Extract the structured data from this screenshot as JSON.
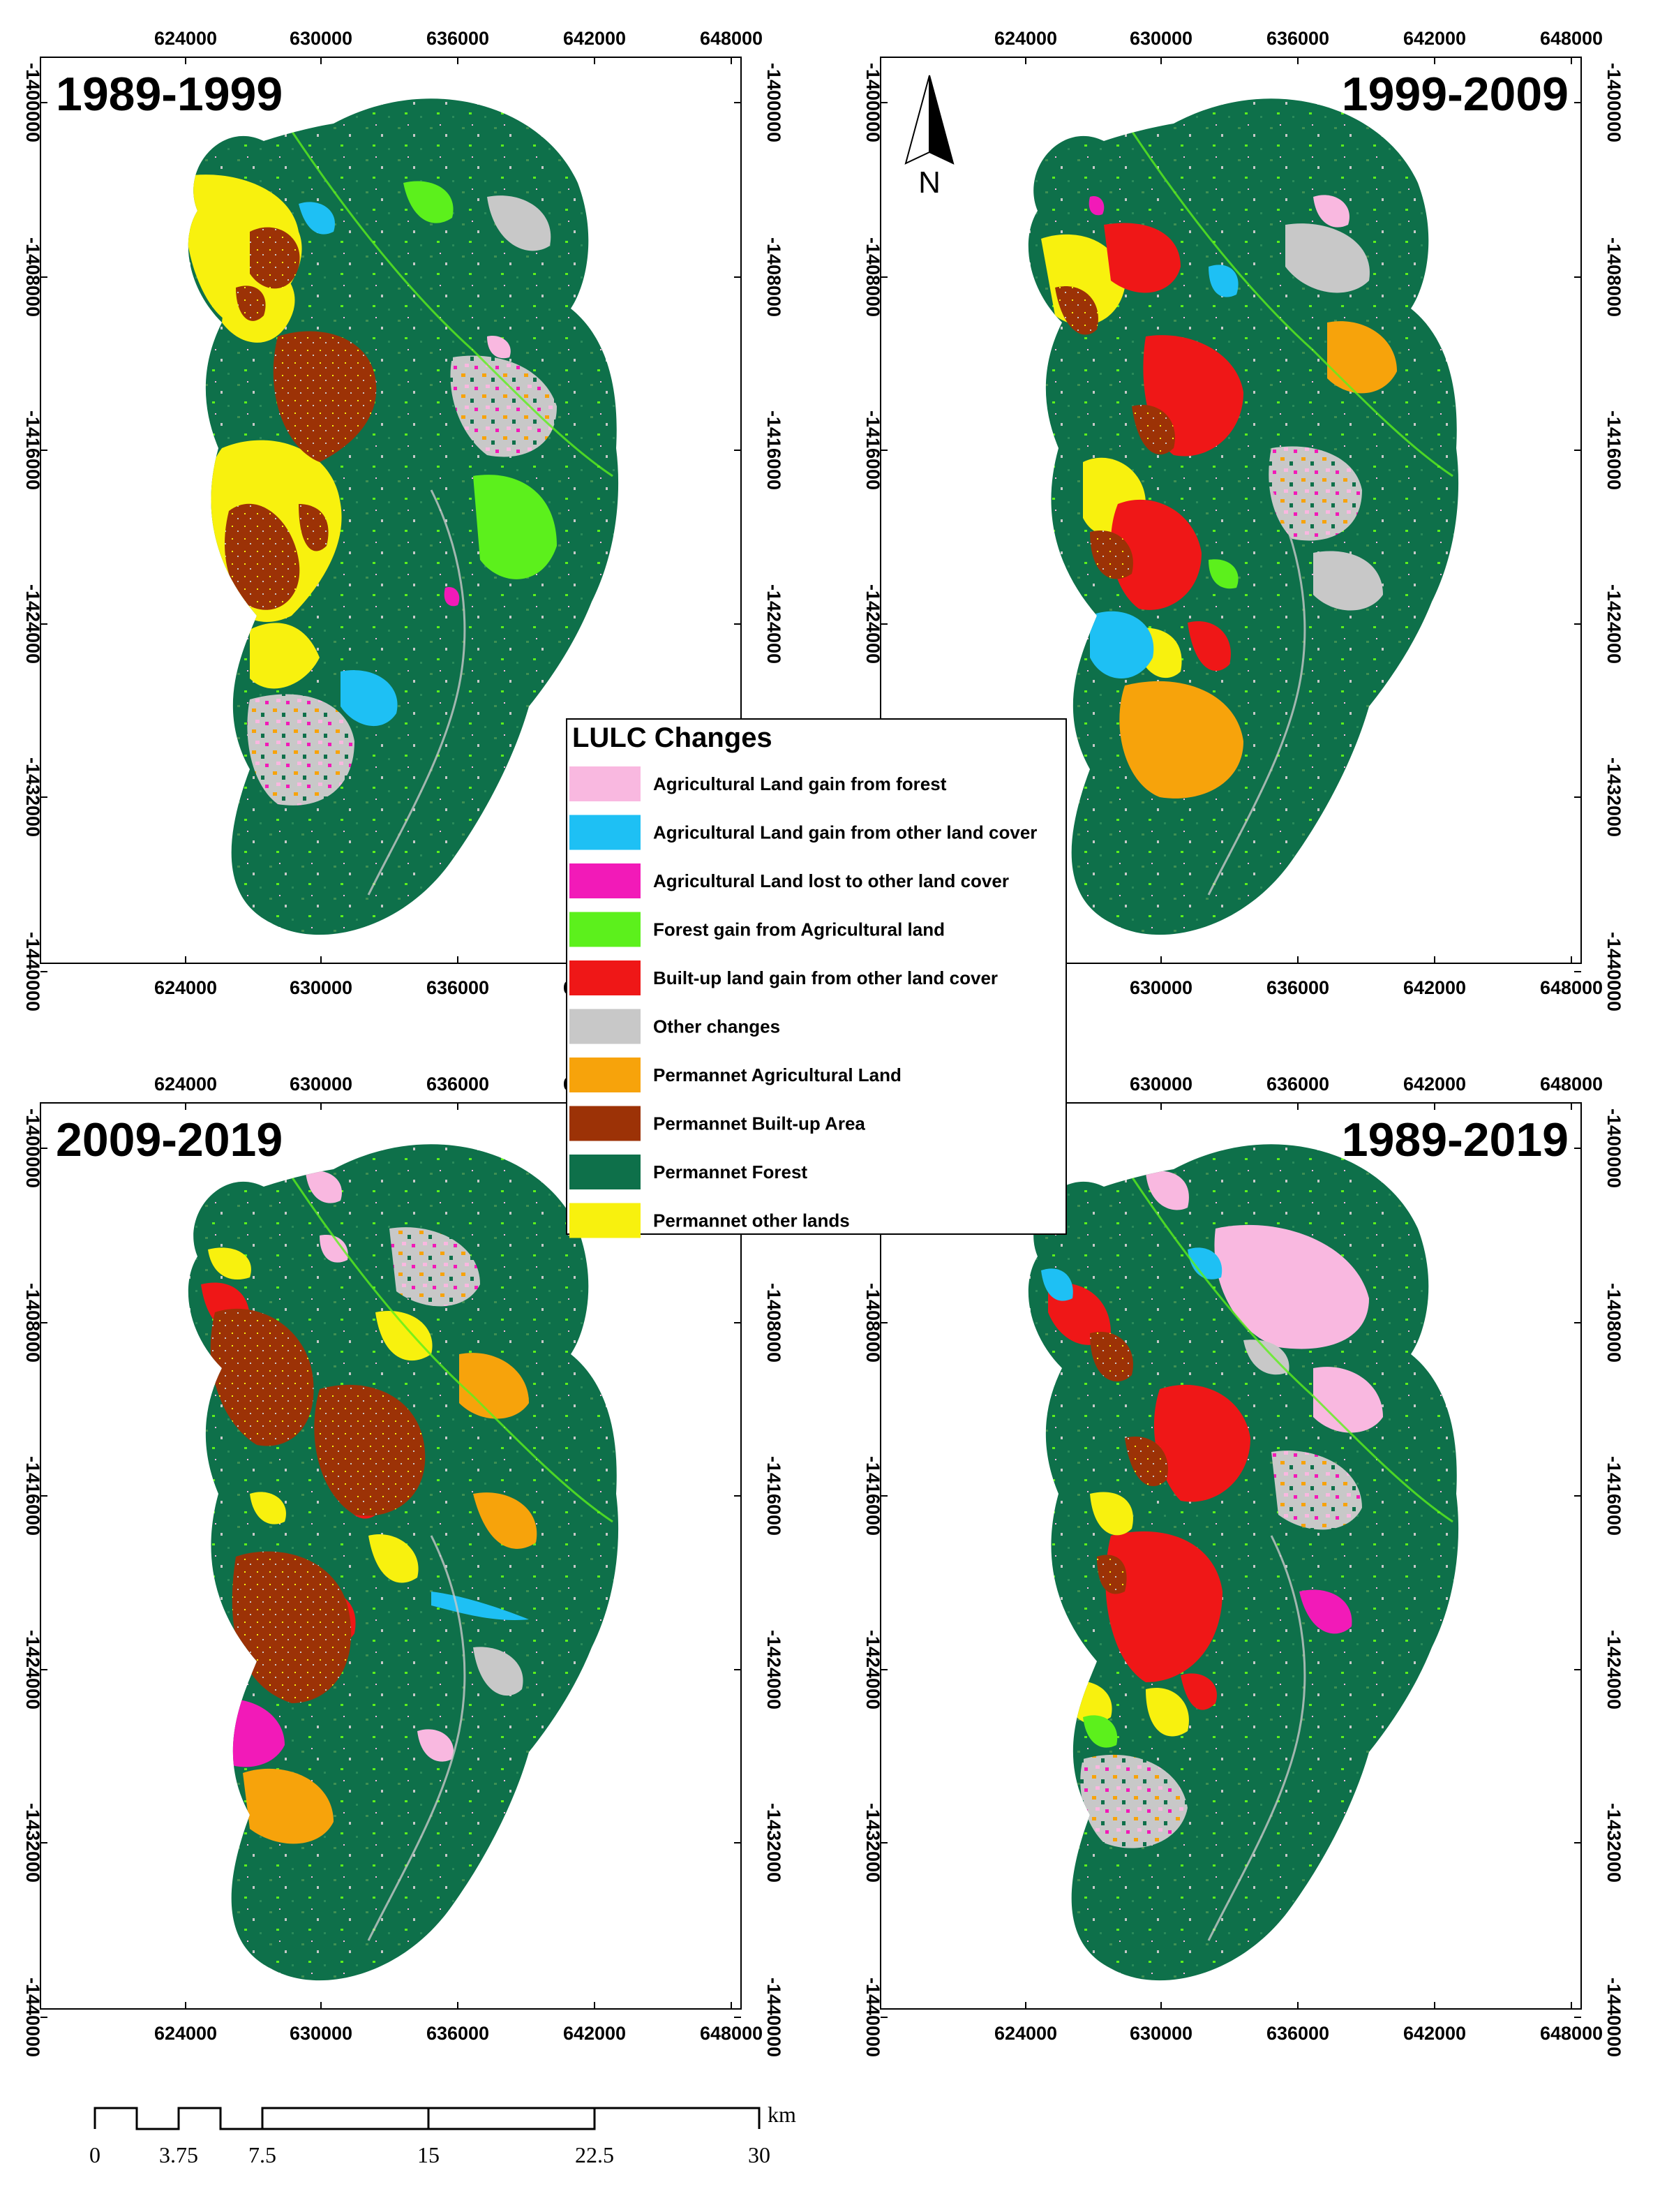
{
  "panels": [
    {
      "id": "p1",
      "title": "1989-1999",
      "title_side": "left"
    },
    {
      "id": "p2",
      "title": "1999-2009",
      "title_side": "right"
    },
    {
      "id": "p3",
      "title": "2009-2019",
      "title_side": "left"
    },
    {
      "id": "p4",
      "title": "1989-2019",
      "title_side": "right"
    }
  ],
  "x_ticks": [
    "624000",
    "630000",
    "636000",
    "642000",
    "648000"
  ],
  "y_ticks": [
    "-1400000",
    "-1408000",
    "-1416000",
    "-1424000",
    "-1432000",
    "-1440000"
  ],
  "north_arrow": {
    "label": "N",
    "icon": "north-arrow-icon"
  },
  "legend": {
    "title": "LULC Changes",
    "items": [
      {
        "label": "Agricultural Land gain from forest",
        "color": "#f9b8e0"
      },
      {
        "label": "Agricultural Land gain from other land cover",
        "color": "#1ec0f4"
      },
      {
        "label": "Agricultural Land lost to other land cover",
        "color": "#f21ab8"
      },
      {
        "label": "Forest gain from Agricultural land",
        "color": "#5cf01c"
      },
      {
        "label": "Built-up land gain from other land cover",
        "color": "#ef1717"
      },
      {
        "label": "Other changes",
        "color": "#c8c8c8"
      },
      {
        "label": "Permannet Agricultural Land",
        "color": "#f7a30b"
      },
      {
        "label": "Permannet Built-up Area",
        "color": "#9c3206"
      },
      {
        "label": "Permannet Forest",
        "color": "#0e704a"
      },
      {
        "label": "Permannet other lands",
        "color": "#f8f10e"
      }
    ]
  },
  "scale_bar": {
    "labels": [
      "0",
      "3.75",
      "7.5",
      "15",
      "22.5",
      "30"
    ],
    "unit": "km"
  }
}
